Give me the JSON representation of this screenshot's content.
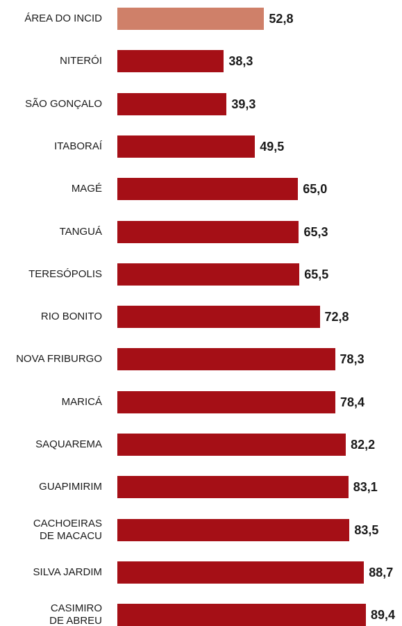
{
  "chart_data": {
    "type": "bar",
    "orientation": "horizontal",
    "categories": [
      "ÁREA DO INCID",
      "NITERÓI",
      "SÃO GONÇALO",
      "ITABORAÍ",
      "MAGÉ",
      "TANGUÁ",
      "TERESÓPOLIS",
      "RIO BONITO",
      "NOVA FRIBURGO",
      "MARICÁ",
      "SAQUAREMA",
      "GUAPIMIRIM",
      "CACHOEIRAS\nDE MACACU",
      "SILVA JARDIM",
      "CASIMIRO\nDE ABREU"
    ],
    "values": [
      52.8,
      38.3,
      39.3,
      49.5,
      65.0,
      65.3,
      65.5,
      72.8,
      78.3,
      78.4,
      82.2,
      83.1,
      83.5,
      88.7,
      89.4
    ],
    "value_labels": [
      "52,8",
      "38,3",
      "39,3",
      "49,5",
      "65,0",
      "65,3",
      "65,5",
      "72,8",
      "78,3",
      "78,4",
      "82,2",
      "83,1",
      "83,5",
      "88,7",
      "89,4"
    ],
    "highlight_index": 0,
    "colors": {
      "highlight": "#cf8069",
      "bar": "#a50f16"
    },
    "title": "",
    "xlabel": "",
    "ylabel": "",
    "xlim": [
      0,
      89.4
    ],
    "grid": false,
    "legend": "none"
  }
}
